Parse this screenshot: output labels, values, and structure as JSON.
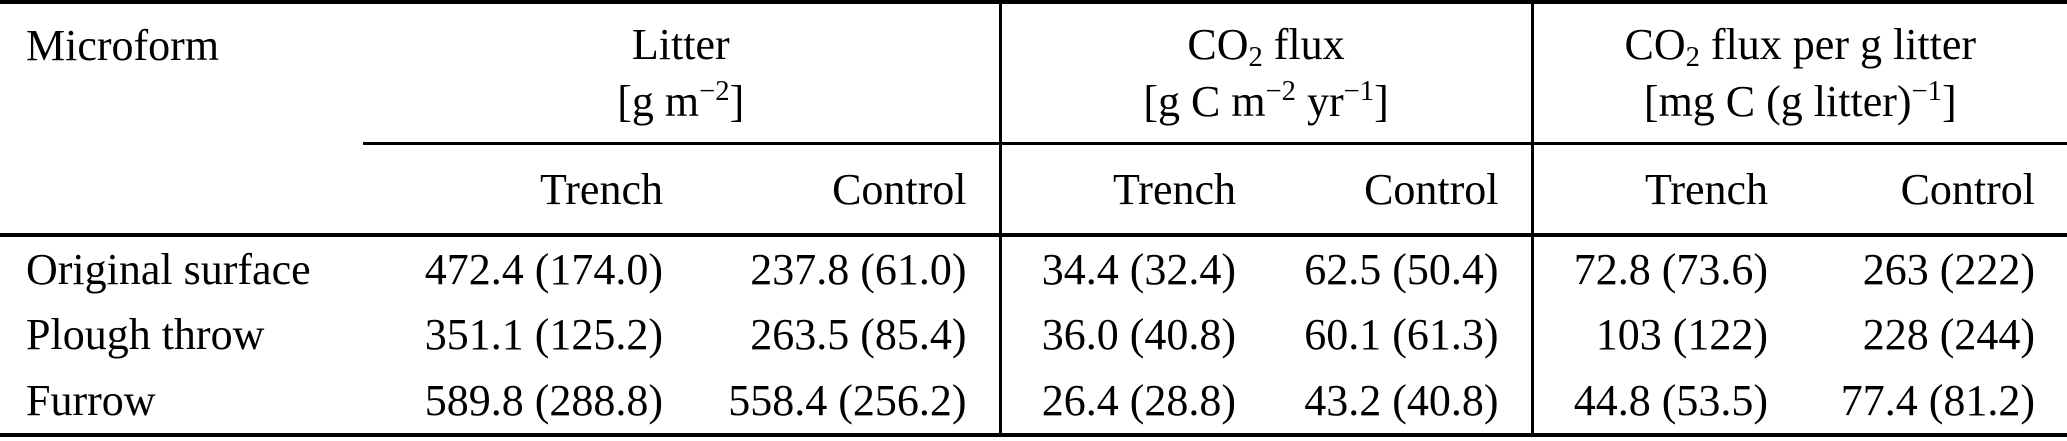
{
  "page": {
    "background_color": "#ffffff",
    "text_color": "#000000",
    "rule_color": "#000000"
  },
  "table": {
    "corner_header": "Microform",
    "groups": [
      {
        "title": "Litter",
        "units": "[g m^−2^]",
        "subcolumns": [
          "Trench",
          "Control"
        ]
      },
      {
        "title": "CO~2~ flux",
        "units": "[g C m^−2^ yr^−1^]",
        "subcolumns": [
          "Trench",
          "Control"
        ]
      },
      {
        "title": "CO~2~ flux per g litter",
        "units": "[mg C (g litter)^−1^]",
        "subcolumns": [
          "Trench",
          "Control"
        ]
      }
    ],
    "rows": [
      {
        "microform": "Original surface",
        "values": [
          "472.4 (174.0)",
          "237.8 (61.0)",
          "34.4 (32.4)",
          "62.5 (50.4)",
          "72.8 (73.6)",
          "263 (222)"
        ]
      },
      {
        "microform": "Plough throw",
        "values": [
          "351.1 (125.2)",
          "263.5 (85.4)",
          "36.0 (40.8)",
          "60.1 (61.3)",
          "103 (122)",
          "228 (244)"
        ]
      },
      {
        "microform": "Furrow",
        "values": [
          "589.8 (288.8)",
          "558.4 (256.2)",
          "26.4 (28.8)",
          "43.2 (40.8)",
          "44.8 (53.5)",
          "77.4 (81.2)"
        ]
      }
    ]
  }
}
